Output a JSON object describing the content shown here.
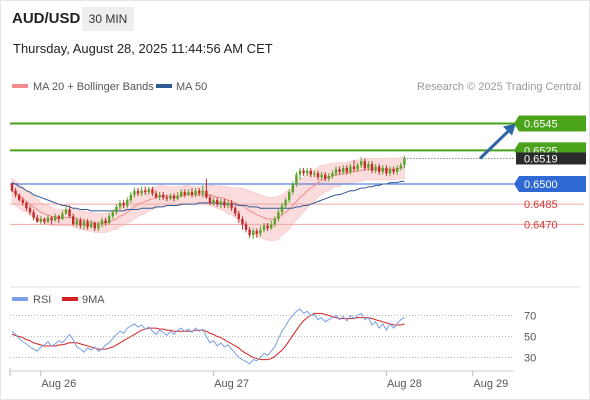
{
  "header": {
    "symbol": "AUD/USD",
    "timeframe": "30 MIN",
    "datetime": "Thursday, August 28, 2025 11:44:56 AM CET"
  },
  "credit": "Research © 2025 Trading Central",
  "colors": {
    "resistance": "#4aa31b",
    "support_main": "#2f6ad4",
    "support_minor": "#f0a6a6",
    "bollinger_fill": "#fbdcdc",
    "ma20": "#f28b8b",
    "ma50": "#2f5a93",
    "candle_up": "#5aa229",
    "candle_down": "#c52a2a",
    "rsi": "#7aa0e3",
    "rsi_ma": "#d42222",
    "arrow": "#2f65a8"
  },
  "chart_data": [
    {
      "type": "candlestick",
      "legend": [
        {
          "name": "MA 20 + Bollinger Bands",
          "color": "#f28b8b"
        },
        {
          "name": "MA 50",
          "color": "#2f5a93"
        }
      ],
      "ylim": [
        6437.5,
        6565.5
      ],
      "y_scale_note": "values are price x 10000",
      "x_ticks": [
        {
          "label": "Aug 26",
          "index": 8
        },
        {
          "label": "Aug 27",
          "index": 56
        },
        {
          "label": "Aug 28",
          "index": 104
        },
        {
          "label": "Aug 29",
          "index": 128
        }
      ],
      "levels": [
        {
          "value": 0.6545,
          "label": "0.6545",
          "style": "resistance"
        },
        {
          "value": 0.6525,
          "label": "0.6525",
          "style": "resistance"
        },
        {
          "value": 0.65,
          "label": "0.6500",
          "style": "support_main"
        },
        {
          "value": 0.6485,
          "label": "0.6485",
          "style": "support_minor"
        },
        {
          "value": 0.647,
          "label": "0.6470",
          "style": "support_minor"
        }
      ],
      "last_price": {
        "value": 0.6519,
        "label": "0.6519"
      },
      "projection": {
        "from_index": 130,
        "from_value": 6519,
        "to_index": 140,
        "to_value": 6545
      },
      "candles": [
        [
          6500,
          6495,
          6501,
          6494
        ],
        [
          6495,
          6492,
          6497,
          6490
        ],
        [
          6492,
          6488,
          6493,
          6487
        ],
        [
          6488,
          6486,
          6490,
          6484
        ],
        [
          6486,
          6482,
          6487,
          6480
        ],
        [
          6482,
          6479,
          6484,
          6477
        ],
        [
          6479,
          6475,
          6481,
          6473
        ],
        [
          6475,
          6472,
          6477,
          6471
        ],
        [
          6472,
          6474,
          6476,
          6470
        ],
        [
          6474,
          6472,
          6475,
          6470
        ],
        [
          6472,
          6475,
          6477,
          6471
        ],
        [
          6475,
          6473,
          6476,
          6470
        ],
        [
          6473,
          6476,
          6478,
          6472
        ],
        [
          6476,
          6474,
          6477,
          6471
        ],
        [
          6474,
          6478,
          6480,
          6473
        ],
        [
          6478,
          6481,
          6484,
          6477
        ],
        [
          6481,
          6476,
          6484,
          6475
        ],
        [
          6476,
          6470,
          6478,
          6469
        ],
        [
          6470,
          6473,
          6475,
          6468
        ],
        [
          6473,
          6469,
          6475,
          6467
        ],
        [
          6469,
          6472,
          6474,
          6466
        ],
        [
          6472,
          6468,
          6474,
          6466
        ],
        [
          6468,
          6471,
          6473,
          6467
        ],
        [
          6471,
          6467,
          6472,
          6465
        ],
        [
          6467,
          6470,
          6472,
          6465
        ],
        [
          6470,
          6473,
          6475,
          6468
        ],
        [
          6473,
          6471,
          6475,
          6469
        ],
        [
          6471,
          6476,
          6478,
          6470
        ],
        [
          6476,
          6479,
          6481,
          6474
        ],
        [
          6479,
          6483,
          6485,
          6477
        ],
        [
          6483,
          6486,
          6488,
          6481
        ],
        [
          6486,
          6484,
          6488,
          6482
        ],
        [
          6484,
          6488,
          6490,
          6482
        ],
        [
          6488,
          6492,
          6494,
          6486
        ],
        [
          6492,
          6495,
          6497,
          6490
        ],
        [
          6495,
          6493,
          6497,
          6491
        ],
        [
          6493,
          6495,
          6498,
          6491
        ],
        [
          6495,
          6494,
          6498,
          6492
        ],
        [
          6494,
          6496,
          6498,
          6492
        ],
        [
          6496,
          6493,
          6498,
          6491
        ],
        [
          6493,
          6490,
          6495,
          6489
        ],
        [
          6490,
          6492,
          6494,
          6488
        ],
        [
          6492,
          6490,
          6494,
          6488
        ],
        [
          6490,
          6489,
          6492,
          6487
        ],
        [
          6489,
          6491,
          6493,
          6488
        ],
        [
          6491,
          6489,
          6493,
          6487
        ],
        [
          6489,
          6491,
          6494,
          6488
        ],
        [
          6491,
          6494,
          6496,
          6490
        ],
        [
          6494,
          6492,
          6496,
          6490
        ],
        [
          6492,
          6494,
          6496,
          6491
        ],
        [
          6494,
          6492,
          6497,
          6490
        ],
        [
          6492,
          6495,
          6497,
          6490
        ],
        [
          6495,
          6493,
          6497,
          6491
        ],
        [
          6493,
          6495,
          6499,
          6490
        ],
        [
          6495,
          6490,
          6504,
          6489
        ],
        [
          6490,
          6486,
          6492,
          6484
        ],
        [
          6486,
          6488,
          6490,
          6484
        ],
        [
          6488,
          6485,
          6490,
          6483
        ],
        [
          6485,
          6487,
          6489,
          6482
        ],
        [
          6487,
          6484,
          6489,
          6482
        ],
        [
          6484,
          6486,
          6488,
          6482
        ],
        [
          6486,
          6482,
          6488,
          6480
        ],
        [
          6482,
          6478,
          6484,
          6476
        ],
        [
          6478,
          6474,
          6480,
          6471
        ],
        [
          6474,
          6470,
          6476,
          6466
        ],
        [
          6470,
          6466,
          6472,
          6464
        ],
        [
          6466,
          6462,
          6468,
          6460
        ],
        [
          6462,
          6465,
          6467,
          6459
        ],
        [
          6465,
          6463,
          6467,
          6460
        ],
        [
          6463,
          6466,
          6469,
          6461
        ],
        [
          6466,
          6469,
          6471,
          6464
        ],
        [
          6469,
          6467,
          6471,
          6465
        ],
        [
          6467,
          6470,
          6473,
          6466
        ],
        [
          6470,
          6474,
          6476,
          6468
        ],
        [
          6474,
          6479,
          6481,
          6472
        ],
        [
          6479,
          6484,
          6486,
          6477
        ],
        [
          6484,
          6488,
          6490,
          6482
        ],
        [
          6488,
          6494,
          6496,
          6486
        ],
        [
          6494,
          6500,
          6502,
          6492
        ],
        [
          6500,
          6507,
          6509,
          6498
        ],
        [
          6507,
          6510,
          6512,
          6503
        ],
        [
          6510,
          6508,
          6512,
          6506
        ],
        [
          6508,
          6510,
          6512,
          6506
        ],
        [
          6510,
          6507,
          6512,
          6505
        ],
        [
          6507,
          6508,
          6510,
          6505
        ],
        [
          6508,
          6505,
          6510,
          6503
        ],
        [
          6505,
          6507,
          6509,
          6503
        ],
        [
          6507,
          6504,
          6509,
          6502
        ],
        [
          6504,
          6506,
          6508,
          6502
        ],
        [
          6506,
          6508,
          6510,
          6504
        ],
        [
          6508,
          6511,
          6513,
          6506
        ],
        [
          6511,
          6509,
          6513,
          6507
        ],
        [
          6509,
          6512,
          6514,
          6507
        ],
        [
          6512,
          6509,
          6514,
          6507
        ],
        [
          6509,
          6513,
          6515,
          6507
        ],
        [
          6513,
          6511,
          6518,
          6509
        ],
        [
          6511,
          6514,
          6516,
          6509
        ],
        [
          6514,
          6517,
          6520,
          6512
        ],
        [
          6517,
          6512,
          6519,
          6510
        ],
        [
          6512,
          6515,
          6517,
          6510
        ],
        [
          6515,
          6510,
          6517,
          6508
        ],
        [
          6510,
          6513,
          6515,
          6508
        ],
        [
          6513,
          6509,
          6515,
          6507
        ],
        [
          6509,
          6512,
          6514,
          6507
        ],
        [
          6512,
          6508,
          6514,
          6506
        ],
        [
          6508,
          6511,
          6513,
          6506
        ],
        [
          6511,
          6509,
          6513,
          6507
        ],
        [
          6509,
          6512,
          6514,
          6507
        ],
        [
          6512,
          6514,
          6516,
          6510
        ],
        [
          6514,
          6519,
          6521,
          6512
        ]
      ],
      "ma20": [
        6495,
        6493,
        6491,
        6489,
        6487,
        6485,
        6483,
        6481,
        6479,
        6478,
        6477,
        6476,
        6475,
        6475,
        6475,
        6475,
        6475,
        6475,
        6474,
        6473,
        6473,
        6472,
        6472,
        6471,
        6471,
        6471,
        6471,
        6472,
        6473,
        6474,
        6476,
        6477,
        6479,
        6481,
        6483,
        6485,
        6486,
        6487,
        6488,
        6489,
        6490,
        6491,
        6491,
        6491,
        6491,
        6491,
        6491,
        6491,
        6492,
        6492,
        6492,
        6492,
        6492,
        6492,
        6492,
        6492,
        6491,
        6490,
        6490,
        6489,
        6488,
        6487,
        6486,
        6485,
        6484,
        6482,
        6480,
        6479,
        6477,
        6476,
        6475,
        6474,
        6474,
        6474,
        6475,
        6477,
        6479,
        6481,
        6484,
        6487,
        6490,
        6492,
        6495,
        6497,
        6499,
        6501,
        6503,
        6504,
        6505,
        6506,
        6507,
        6507,
        6508,
        6508,
        6509,
        6509,
        6510,
        6510,
        6511,
        6511,
        6511,
        6511,
        6511,
        6511,
        6511,
        6511,
        6511,
        6511,
        6512,
        6512
      ],
      "bb_width": [
        9,
        9,
        9,
        9,
        8,
        8,
        8,
        8,
        7,
        7,
        7,
        7,
        6,
        6,
        6,
        6,
        6,
        7,
        7,
        7,
        7,
        7,
        7,
        7,
        7,
        7,
        7,
        7,
        7,
        8,
        8,
        8,
        8,
        9,
        9,
        9,
        9,
        9,
        8,
        8,
        8,
        8,
        8,
        7,
        7,
        7,
        7,
        7,
        7,
        7,
        6,
        6,
        6,
        6,
        7,
        7,
        8,
        8,
        9,
        9,
        10,
        10,
        11,
        12,
        13,
        14,
        15,
        15,
        16,
        16,
        16,
        16,
        16,
        16,
        16,
        15,
        15,
        15,
        14,
        14,
        14,
        13,
        13,
        12,
        12,
        11,
        11,
        10,
        10,
        9,
        9,
        9,
        8,
        8,
        8,
        8,
        8,
        8,
        8,
        8,
        8,
        8,
        8,
        8,
        8,
        8,
        8,
        8,
        8,
        8
      ],
      "ma50": [
        6501,
        6500,
        6498,
        6497,
        6495,
        6494,
        6492,
        6491,
        6490,
        6489,
        6488,
        6487,
        6486,
        6485,
        6484,
        6484,
        6483,
        6482,
        6482,
        6481,
        6481,
        6481,
        6480,
        6480,
        6480,
        6480,
        6480,
        6480,
        6480,
        6480,
        6480,
        6480,
        6481,
        6481,
        6481,
        6481,
        6482,
        6482,
        6482,
        6482,
        6483,
        6483,
        6483,
        6484,
        6484,
        6484,
        6484,
        6485,
        6485,
        6485,
        6485,
        6485,
        6486,
        6486,
        6486,
        6486,
        6486,
        6486,
        6485,
        6485,
        6485,
        6485,
        6485,
        6484,
        6484,
        6484,
        6483,
        6483,
        6483,
        6482,
        6482,
        6482,
        6482,
        6482,
        6482,
        6482,
        6482,
        6482,
        6482,
        6483,
        6483,
        6484,
        6484,
        6485,
        6486,
        6487,
        6488,
        6489,
        6490,
        6491,
        6492,
        6492,
        6493,
        6494,
        6495,
        6495,
        6496,
        6497,
        6497,
        6498,
        6498,
        6499,
        6499,
        6500,
        6500,
        6501,
        6501,
        6501,
        6502,
        6502
      ]
    },
    {
      "type": "line",
      "legend": [
        {
          "name": "RSI",
          "color": "#7aa0e3"
        },
        {
          "name": "9MA",
          "color": "#d42222"
        }
      ],
      "y_ticks": [
        70,
        50,
        30
      ],
      "ylim": [
        20,
        80
      ],
      "series": [
        {
          "name": "RSI",
          "values": [
            55,
            52,
            48,
            45,
            43,
            40,
            38,
            36,
            40,
            42,
            45,
            41,
            43,
            46,
            44,
            48,
            52,
            47,
            40,
            38,
            35,
            39,
            37,
            40,
            36,
            38,
            42,
            44,
            48,
            52,
            55,
            53,
            58,
            60,
            62,
            59,
            61,
            57,
            59,
            55,
            52,
            56,
            54,
            51,
            55,
            52,
            56,
            58,
            55,
            57,
            54,
            58,
            55,
            57,
            50,
            44,
            46,
            41,
            44,
            40,
            42,
            38,
            34,
            30,
            28,
            26,
            24,
            28,
            27,
            30,
            34,
            32,
            36,
            40,
            48,
            55,
            60,
            66,
            70,
            74,
            76,
            72,
            74,
            70,
            71,
            66,
            68,
            64,
            66,
            68,
            70,
            66,
            69,
            65,
            70,
            67,
            70,
            72,
            66,
            68,
            61,
            64,
            58,
            62,
            56,
            62,
            58,
            62,
            66,
            68
          ]
        },
        {
          "name": "9MA",
          "values": [
            52,
            51,
            50,
            49,
            47,
            46,
            44,
            43,
            42,
            41,
            41,
            41,
            41,
            42,
            42,
            43,
            44,
            44,
            44,
            43,
            42,
            41,
            40,
            39,
            38,
            38,
            38,
            39,
            40,
            42,
            44,
            46,
            48,
            50,
            52,
            54,
            56,
            57,
            58,
            58,
            58,
            57,
            57,
            56,
            56,
            55,
            55,
            55,
            55,
            55,
            55,
            56,
            56,
            56,
            55,
            53,
            52,
            50,
            49,
            47,
            45,
            43,
            41,
            39,
            36,
            34,
            32,
            30,
            29,
            28,
            28,
            28,
            29,
            31,
            34,
            37,
            41,
            46,
            51,
            56,
            61,
            65,
            68,
            70,
            72,
            72,
            72,
            71,
            70,
            69,
            68,
            67,
            67,
            67,
            67,
            67,
            68,
            68,
            68,
            68,
            67,
            66,
            65,
            64,
            63,
            62,
            61,
            61,
            61,
            62
          ]
        }
      ]
    }
  ]
}
